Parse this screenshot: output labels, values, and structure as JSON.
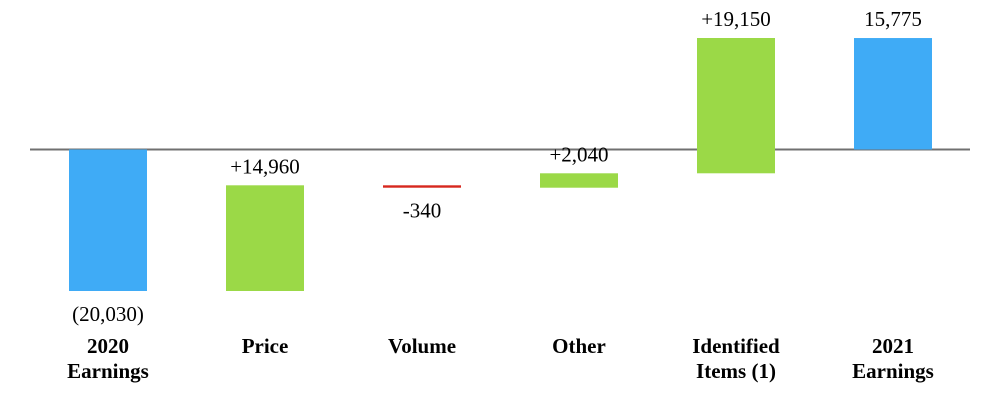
{
  "chart_data": {
    "type": "waterfall",
    "categories": [
      "2020\nEarnings",
      "Price",
      "Volume",
      "Other",
      "Identified\nItems (1)",
      "2021\nEarnings"
    ],
    "values": [
      -20030,
      14960,
      -340,
      2040,
      19150,
      15775
    ],
    "value_labels": [
      "(20,030)",
      "+14,960",
      "-340",
      "+2,040",
      "+19,150",
      "15,775"
    ],
    "is_total": [
      true,
      false,
      false,
      false,
      false,
      true
    ],
    "colors": {
      "total": "#3fabf6",
      "increase": "#9bd947",
      "decrease": "#d7271e"
    }
  }
}
